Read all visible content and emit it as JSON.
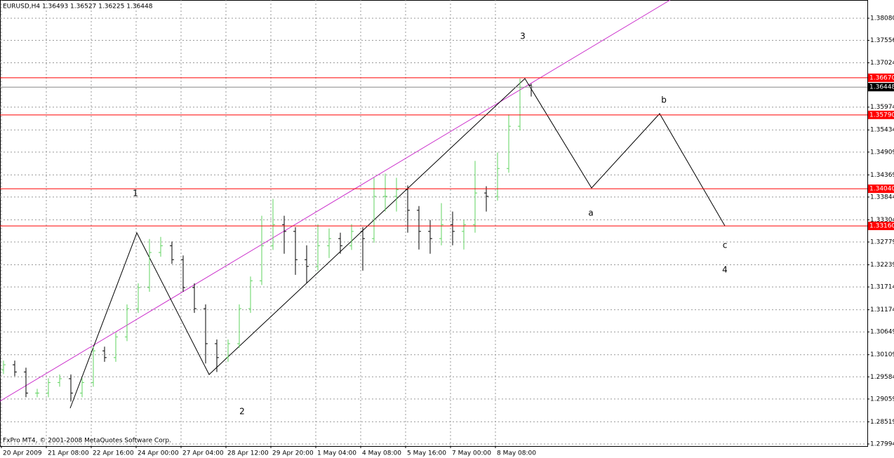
{
  "chart_data": {
    "type": "ohlc",
    "title": "EURUSD,H4  1.36493 1.36527 1.36225 1.36448",
    "footer": "FxPro MT4, © 2001-2008 MetaQuotes Software Corp.",
    "categories": [
      "20 Apr 2009",
      null,
      null,
      null,
      "21 Apr 08:00",
      null,
      null,
      null,
      "22 Apr 16:00",
      null,
      null,
      null,
      "24 Apr 00:00",
      null,
      null,
      null,
      "27 Apr 04:00",
      null,
      null,
      null,
      "28 Apr 12:00",
      null,
      null,
      null,
      "29 Apr 20:00",
      null,
      null,
      null,
      "1 May 04:00",
      null,
      null,
      null,
      "4 May 08:00",
      null,
      null,
      null,
      "5 May 16:00",
      null,
      null,
      null,
      "7 May 00:00",
      null,
      null,
      null,
      "8 May 08:00",
      null,
      null,
      null
    ],
    "open": [
      1.2975,
      1.2987,
      1.297,
      1.292,
      1.292,
      1.2945,
      1.2954,
      1.292,
      1.2945,
      1.302,
      1.3004,
      1.3053,
      1.312,
      1.317,
      1.3253,
      1.3269,
      1.3236,
      1.317,
      1.312,
      1.3037,
      1.3004,
      1.3037,
      1.312,
      1.3186,
      1.3269,
      1.3319,
      1.3303,
      1.3236,
      1.322,
      1.3269,
      1.3286,
      1.3269,
      1.3303,
      1.3286,
      1.3386,
      1.3386,
      1.3402,
      1.3353,
      1.3303,
      1.3286,
      1.3319,
      1.3303,
      1.3319,
      1.3394,
      1.3386,
      1.3452,
      1.3552,
      1.36493
    ],
    "high": [
      1.2997,
      1.2997,
      1.298,
      1.293,
      1.2955,
      1.2964,
      1.2964,
      1.2955,
      1.303,
      1.303,
      1.3063,
      1.313,
      1.318,
      1.3285,
      1.329,
      1.3279,
      1.3246,
      1.318,
      1.313,
      1.3047,
      1.3047,
      1.313,
      1.3196,
      1.334,
      1.338,
      1.334,
      1.3313,
      1.327,
      1.332,
      1.331,
      1.33,
      1.332,
      1.3313,
      1.343,
      1.344,
      1.343,
      1.3412,
      1.3363,
      1.333,
      1.337,
      1.335,
      1.333,
      1.347,
      1.341,
      1.349,
      1.358,
      1.3665,
      1.36527
    ],
    "low": [
      1.2965,
      1.296,
      1.291,
      1.291,
      1.291,
      1.2935,
      1.29,
      1.291,
      1.2935,
      1.2994,
      1.2994,
      1.3043,
      1.311,
      1.316,
      1.3243,
      1.3226,
      1.316,
      1.311,
      1.299,
      1.297,
      1.2994,
      1.3027,
      1.311,
      1.3176,
      1.3259,
      1.325,
      1.32,
      1.318,
      1.321,
      1.324,
      1.325,
      1.3259,
      1.321,
      1.3276,
      1.335,
      1.335,
      1.33,
      1.326,
      1.325,
      1.327,
      1.327,
      1.326,
      1.33,
      1.335,
      1.3376,
      1.3442,
      1.3542,
      1.36225
    ],
    "close": [
      1.2987,
      1.297,
      1.292,
      1.292,
      1.2945,
      1.2954,
      1.292,
      1.2945,
      1.302,
      1.3004,
      1.3053,
      1.312,
      1.317,
      1.3253,
      1.3269,
      1.3236,
      1.317,
      1.312,
      1.3037,
      1.3004,
      1.3037,
      1.312,
      1.3186,
      1.3269,
      1.3319,
      1.3303,
      1.3236,
      1.322,
      1.3269,
      1.3286,
      1.3269,
      1.3303,
      1.3286,
      1.3386,
      1.3386,
      1.3402,
      1.3353,
      1.3303,
      1.3286,
      1.3319,
      1.3303,
      1.3319,
      1.3394,
      1.3386,
      1.3452,
      1.3552,
      1.3644,
      1.36448
    ],
    "up_color": "#5fd35f",
    "down_color": "#000000",
    "ylim": [
      1.27944,
      1.38512
    ],
    "yticks": [
      {
        "value": 1.3808,
        "label": "1.38080"
      },
      {
        "value": 1.37556,
        "label": "1.37556"
      },
      {
        "value": 1.37024,
        "label": "1.37024"
      },
      {
        "value": 1.35974,
        "label": "1.35974"
      },
      {
        "value": 1.35434,
        "label": "1.35434"
      },
      {
        "value": 1.34909,
        "label": "1.34909"
      },
      {
        "value": 1.34369,
        "label": "1.34369"
      },
      {
        "value": 1.33844,
        "label": "1.33844"
      },
      {
        "value": 1.33304,
        "label": "1.33304"
      },
      {
        "value": 1.32779,
        "label": "1.32779"
      },
      {
        "value": 1.32239,
        "label": "1.32239"
      },
      {
        "value": 1.31714,
        "label": "1.31714"
      },
      {
        "value": 1.31174,
        "label": "1.31174"
      },
      {
        "value": 1.30649,
        "label": "1.30649"
      },
      {
        "value": 1.30109,
        "label": "1.30109"
      },
      {
        "value": 1.29584,
        "label": "1.29584"
      },
      {
        "value": 1.29059,
        "label": "1.29059"
      },
      {
        "value": 1.28519,
        "label": "1.28519"
      },
      {
        "value": 1.27994,
        "label": "1.27994"
      }
    ],
    "grid": true,
    "levels": [
      {
        "value": 1.3667,
        "label": "1.36670"
      },
      {
        "value": 1.3579,
        "label": "1.35790"
      },
      {
        "value": 1.3404,
        "label": "1.34040"
      },
      {
        "value": 1.3316,
        "label": "1.33160"
      }
    ],
    "level_color": "#ff0000",
    "last_price": {
      "value": 1.36448,
      "label": "1.36448"
    },
    "annotations": [
      "1",
      "2",
      "3",
      "a",
      "b",
      "c",
      "4"
    ]
  }
}
